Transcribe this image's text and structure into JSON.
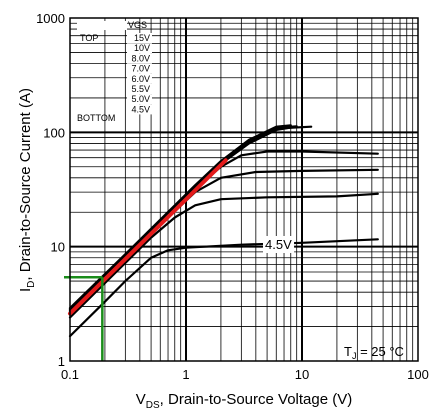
{
  "chart_data": {
    "type": "line",
    "xscale": "log",
    "yscale": "log",
    "xlim": [
      0.1,
      100
    ],
    "ylim": [
      1,
      1000
    ],
    "grid": true,
    "xticks": [
      "0.1",
      "1",
      "10",
      "100"
    ],
    "yticks": [
      "1",
      "10",
      "100",
      "1000"
    ],
    "xlabel": {
      "main": "V",
      "sub": "DS",
      "rest": ", Drain-to-Source Voltage (V)"
    },
    "ylabel": {
      "main": "I",
      "sub": "D",
      "rest": ",  Drain-to-Source Current (A)"
    },
    "legend": {
      "header": "VGS",
      "top_label": "TOP",
      "bottom_label": "BOTTOM",
      "entries": [
        "15V",
        "10V",
        "8.0V",
        "7.0V",
        "6.0V",
        "5.5V",
        "5.0V",
        "4.5V"
      ]
    },
    "annotations": {
      "curve_label": "4.5V",
      "temperature": {
        "main": "T",
        "sub": "J",
        "rest": " = 25 °C"
      }
    },
    "series": [
      {
        "name": "4.5V",
        "points": [
          [
            0.1,
            1.65
          ],
          [
            0.2,
            3.3
          ],
          [
            0.3,
            5.0
          ],
          [
            0.5,
            8.0
          ],
          [
            0.7,
            9.3
          ],
          [
            1,
            9.8
          ],
          [
            3,
            10.4
          ],
          [
            10,
            10.8
          ],
          [
            45,
            11.6
          ]
        ]
      },
      {
        "name": "5.0V",
        "points": [
          [
            0.1,
            2.4
          ],
          [
            0.3,
            7.2
          ],
          [
            0.5,
            12
          ],
          [
            0.8,
            18
          ],
          [
            1.2,
            23
          ],
          [
            2,
            26
          ],
          [
            5,
            27
          ],
          [
            20,
            27.5
          ],
          [
            45,
            29
          ]
        ]
      },
      {
        "name": "5.5V",
        "points": [
          [
            0.1,
            2.6
          ],
          [
            0.3,
            7.8
          ],
          [
            0.6,
            15.5
          ],
          [
            1.2,
            30
          ],
          [
            2,
            40
          ],
          [
            4,
            45
          ],
          [
            10,
            46
          ],
          [
            45,
            47
          ]
        ]
      },
      {
        "name": "6.0V",
        "points": [
          [
            0.1,
            2.7
          ],
          [
            0.3,
            8.1
          ],
          [
            0.6,
            16
          ],
          [
            1.2,
            32
          ],
          [
            2,
            50
          ],
          [
            3,
            63
          ],
          [
            5,
            68
          ],
          [
            10,
            68
          ],
          [
            45,
            65
          ]
        ]
      },
      {
        "name": "7.0V",
        "points": [
          [
            0.1,
            2.75
          ],
          [
            0.3,
            8.3
          ],
          [
            0.6,
            16.5
          ],
          [
            1.2,
            33
          ],
          [
            2,
            53
          ],
          [
            3.5,
            80
          ],
          [
            6,
            105
          ],
          [
            8,
            110
          ]
        ]
      },
      {
        "name": "8.0V",
        "points": [
          [
            0.1,
            2.8
          ],
          [
            0.3,
            8.4
          ],
          [
            0.6,
            16.8
          ],
          [
            1.2,
            33.5
          ],
          [
            2,
            54
          ],
          [
            3.5,
            82
          ],
          [
            6,
            108
          ],
          [
            12,
            112
          ]
        ]
      },
      {
        "name": "10V",
        "points": [
          [
            0.1,
            2.85
          ],
          [
            0.3,
            8.5
          ],
          [
            0.6,
            17
          ],
          [
            1.2,
            34
          ],
          [
            2,
            55
          ],
          [
            3.5,
            84
          ],
          [
            6,
            110
          ],
          [
            9,
            113
          ]
        ]
      },
      {
        "name": "15V",
        "points": [
          [
            0.1,
            2.9
          ],
          [
            0.3,
            8.6
          ],
          [
            0.6,
            17.2
          ],
          [
            1.2,
            34.5
          ],
          [
            2,
            56
          ],
          [
            3.5,
            86
          ],
          [
            6,
            112
          ],
          [
            8,
            115
          ]
        ]
      }
    ],
    "highlight_line": {
      "color": "#e31b1b",
      "points": [
        [
          0.1,
          2.6
        ],
        [
          2.2,
          57
        ]
      ]
    },
    "marker": {
      "color": "#1a8c1a",
      "x": 0.19,
      "y": 5.4
    }
  }
}
